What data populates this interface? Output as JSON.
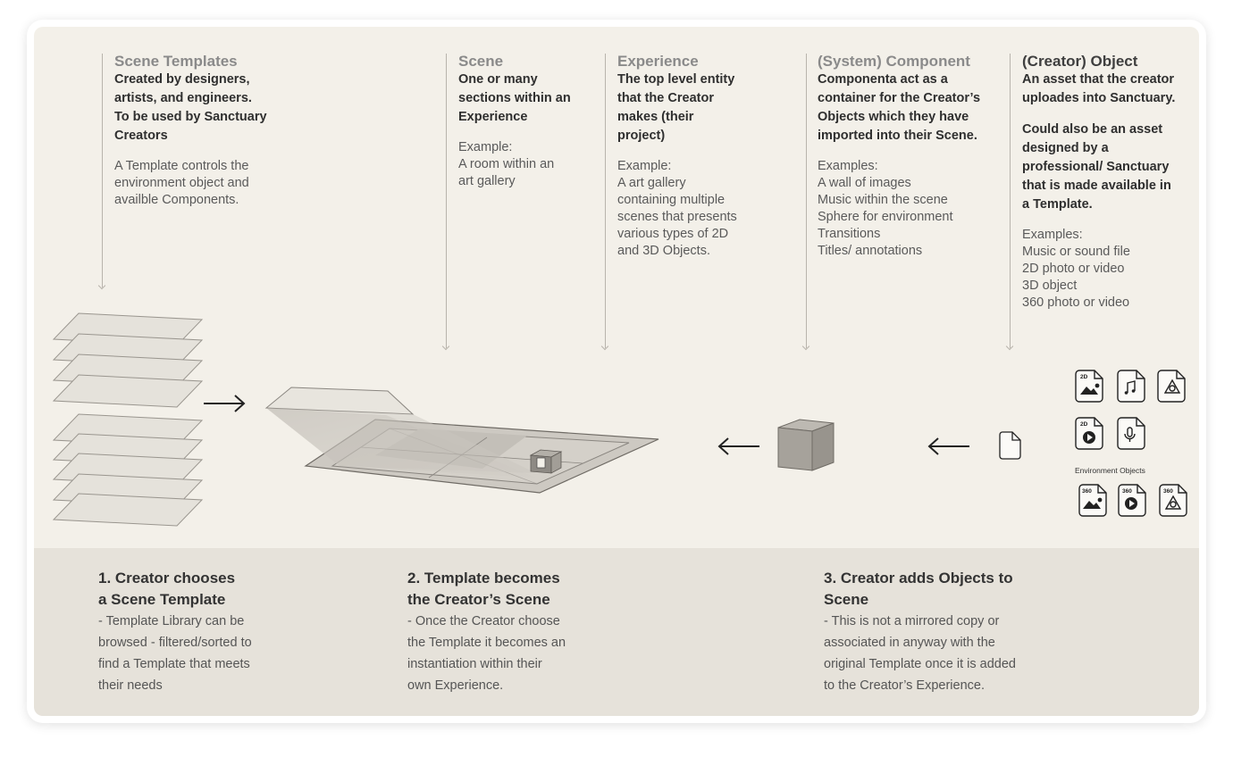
{
  "columns": [
    {
      "title": "Scene Templates",
      "bold": "Created by designers,\nartists, and engineers.\nTo be used by Sanctuary\nCreators",
      "light": "A Template controls the\nenvironment object and\navailble Components."
    },
    {
      "title": "Scene",
      "bold": "One or many\nsections within an\nExperience",
      "light": "Example:\nA room within an\nart gallery"
    },
    {
      "title": "Experience",
      "bold": "The top level entity\nthat the Creator\nmakes (their\nproject)",
      "light": "Example:\nA art gallery\ncontaining multiple\nscenes that presents\nvarious types of 2D\nand 3D Objects."
    },
    {
      "title": "(System) Component",
      "bold": "Componenta act as a\ncontainer for the Creator’s\nObjects which they have\nimported into their Scene.",
      "light": "Examples:\nA wall of images\nMusic within the scene\nSphere for environment\nTransitions\nTitles/ annotations"
    },
    {
      "title": "(Creator) Object",
      "bold": "An asset that the creator\nuploades into Sanctuary.",
      "bold2": "Could also be an asset\ndesigned by a\nprofessional/ Sanctuary\nthat is made available in\na Template.",
      "light": "Examples:\nMusic or sound file\n2D photo or video\n3D object\n360 photo or video"
    }
  ],
  "icons": {
    "badge_2d": "2D",
    "badge_360": "360",
    "env_label": "Environment Objects"
  },
  "steps": [
    {
      "title": "1. Creator chooses\na Scene Template",
      "desc": "- Template Library can be\nbrowsed - filtered/sorted to\nfind a Template that meets\ntheir needs"
    },
    {
      "title": "2. Template becomes\nthe Creator’s Scene",
      "desc": "- Once the Creator choose\nthe Template it becomes an\ninstantiation within their\nown Experience."
    },
    {
      "title": "3. Creator adds Objects to\nScene",
      "desc": "- This is not a mirrored copy or\nassociated in anyway with the\noriginal Template once it is added\nto the Creator’s Experience."
    }
  ],
  "colors": {
    "top_panel": "#f3f0e9",
    "bottom_panel": "#e6e2da",
    "layer_fill": "#e5e2db",
    "cube": "#a8a49d"
  }
}
